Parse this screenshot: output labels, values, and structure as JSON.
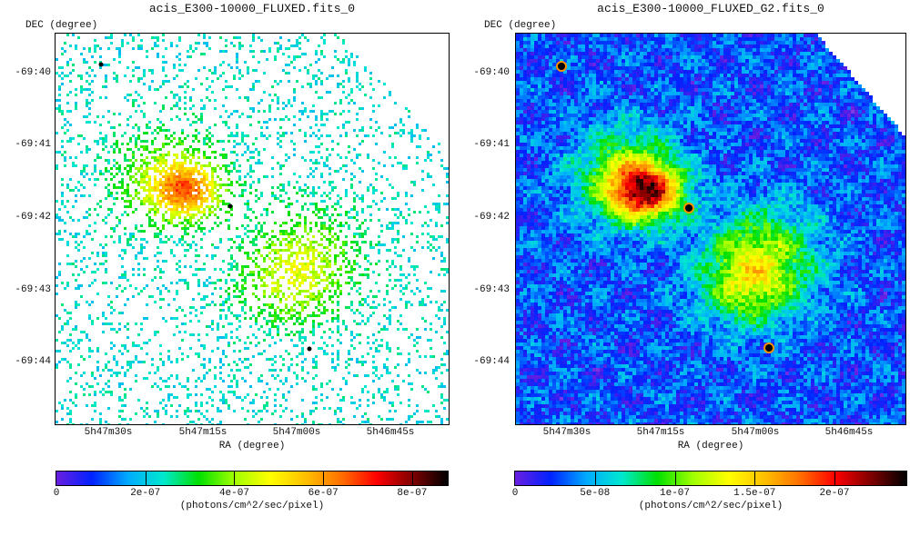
{
  "chart_data": [
    {
      "type": "heatmap",
      "title": "acis_E300-10000_FLUXED.fits_0",
      "xlabel": "RA (degree)",
      "ylabel": "DEC (degree)",
      "x_ticks": [
        "5h47m30s",
        "5h47m15s",
        "5h47m00s",
        "5h46m45s"
      ],
      "y_ticks": [
        "-69:40",
        "-69:41",
        "-69:42",
        "-69:43",
        "-69:44"
      ],
      "colorbar": {
        "ticks": [
          "0",
          "2e-07",
          "4e-07",
          "6e-07",
          "8e-07"
        ],
        "tick_values": [
          0,
          2e-07,
          4e-07,
          6e-07,
          8e-07
        ],
        "range": [
          0,
          8.8e-07
        ],
        "label": "(photons/cm^2/sec/pixel)"
      },
      "colormap": [
        "#ffffff",
        "#6a1ee0",
        "#0022ff",
        "#00aaff",
        "#00e8d0",
        "#00e000",
        "#a0ff00",
        "#ffff00",
        "#ffc000",
        "#ff7000",
        "#ff0000",
        "#800000",
        "#000000"
      ],
      "style": "sparse-pixels",
      "sources_noted": [
        "bright diffuse region upper-left",
        "diffuse region center",
        "point sources"
      ]
    },
    {
      "type": "heatmap",
      "title": "acis_E300-10000_FLUXED_G2.fits_0",
      "xlabel": "RA (degree)",
      "ylabel": "DEC (degree)",
      "x_ticks": [
        "5h47m30s",
        "5h47m15s",
        "5h47m00s",
        "5h46m45s"
      ],
      "y_ticks": [
        "-69:40",
        "-69:41",
        "-69:42",
        "-69:43",
        "-69:44"
      ],
      "colorbar": {
        "ticks": [
          "0",
          "5e-08",
          "1e-07",
          "1.5e-07",
          "2e-07"
        ],
        "tick_values": [
          0,
          5e-08,
          1e-07,
          1.5e-07,
          2e-07
        ],
        "range": [
          0,
          2.45e-07
        ],
        "label": "(photons/cm^2/sec/pixel)"
      },
      "colormap": [
        "#ffffff",
        "#6a1ee0",
        "#0022ff",
        "#00aaff",
        "#00e8d0",
        "#00e000",
        "#a0ff00",
        "#ffff00",
        "#ffc000",
        "#ff7000",
        "#ff0000",
        "#800000",
        "#000000"
      ],
      "style": "smoothed",
      "sources_noted": [
        "bright diffuse region upper-left",
        "diffuse region center",
        "point sources"
      ]
    }
  ]
}
